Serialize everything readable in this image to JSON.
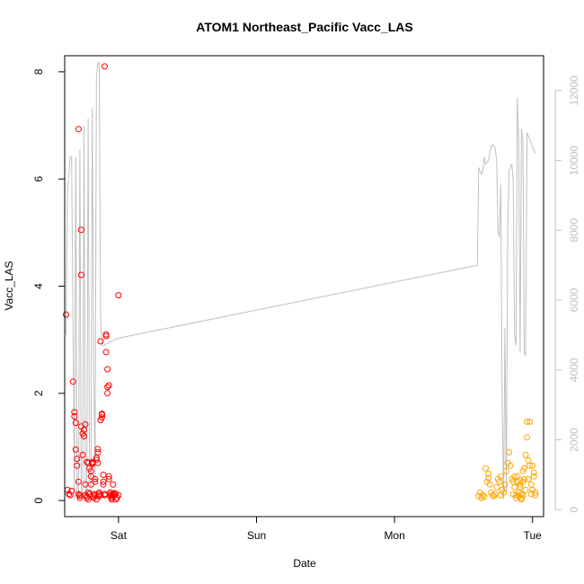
{
  "chart_data": {
    "type": "scatter",
    "title": "ATOM1 Northeast_Pacific Vacc_LAS",
    "xlabel": "Date",
    "ylabel": "Vacc_LAS",
    "x_unit": "days (0 = Sat 00:00)",
    "xlim": [
      -0.39,
      3.08
    ],
    "ylim": [
      -0.3,
      8.3
    ],
    "y2lim": [
      -200,
      13000
    ],
    "x_ticks": [
      {
        "value": 0,
        "label": "Sat"
      },
      {
        "value": 1,
        "label": "Sun"
      },
      {
        "value": 2,
        "label": "Mon"
      },
      {
        "value": 3,
        "label": "Tue"
      }
    ],
    "y_ticks": [
      {
        "value": 0,
        "label": "0"
      },
      {
        "value": 2,
        "label": "2"
      },
      {
        "value": 4,
        "label": "4"
      },
      {
        "value": 6,
        "label": "6"
      },
      {
        "value": 8,
        "label": "8"
      }
    ],
    "y2_ticks": [
      {
        "value": 0,
        "label": "0"
      },
      {
        "value": 2000,
        "label": "2000"
      },
      {
        "value": 4000,
        "label": "4000"
      },
      {
        "value": 6000,
        "label": "6000"
      },
      {
        "value": 8000,
        "label": "8000"
      },
      {
        "value": 10000,
        "label": "10000"
      },
      {
        "value": 12000,
        "label": "12000"
      }
    ],
    "colors": {
      "series1": "#ff0000",
      "series2": "#ffa500",
      "line": "#c0c0c0"
    },
    "series": [
      {
        "color": "#ff0000",
        "x": [
          -0.38,
          -0.37,
          -0.36,
          -0.35,
          -0.34,
          -0.33,
          -0.32,
          -0.32,
          -0.31,
          -0.31,
          -0.3,
          -0.3,
          -0.29,
          -0.29,
          -0.29,
          -0.28,
          -0.28,
          -0.28,
          -0.27,
          -0.27,
          -0.27,
          -0.26,
          -0.26,
          -0.25,
          -0.25,
          -0.24,
          -0.24,
          -0.24,
          -0.23,
          -0.23,
          -0.23,
          -0.22,
          -0.22,
          -0.22,
          -0.21,
          -0.21,
          -0.21,
          -0.2,
          -0.2,
          -0.2,
          -0.19,
          -0.19,
          -0.19,
          -0.18,
          -0.18,
          -0.18,
          -0.17,
          -0.17,
          -0.17,
          -0.16,
          -0.16,
          -0.16,
          -0.15,
          -0.15,
          -0.15,
          -0.14,
          -0.14,
          -0.14,
          -0.13,
          -0.13,
          -0.13,
          -0.12,
          -0.12,
          -0.12,
          -0.11,
          -0.11,
          -0.11,
          -0.1,
          -0.1,
          -0.1,
          -0.09,
          -0.09,
          -0.09,
          -0.08,
          -0.08,
          -0.08,
          -0.07,
          -0.07,
          -0.07,
          -0.06,
          -0.06,
          -0.06,
          -0.05,
          -0.05,
          -0.05,
          -0.04,
          -0.04,
          -0.04,
          -0.03,
          -0.03,
          -0.02,
          -0.02,
          -0.01,
          0.0,
          0.0
        ],
        "y": [
          3.47,
          0.2,
          0.12,
          0.1,
          0.18,
          2.22,
          1.57,
          1.65,
          1.45,
          0.95,
          0.65,
          0.78,
          6.93,
          0.35,
          0.12,
          0.05,
          0.1,
          0.09,
          5.05,
          4.21,
          1.38,
          0.85,
          1.25,
          1.2,
          1.32,
          1.42,
          0.3,
          0.1,
          0.05,
          0.08,
          0.72,
          0.7,
          0.02,
          0.15,
          0.12,
          0.6,
          0.12,
          0.45,
          0.3,
          0.55,
          0.7,
          0.68,
          0.72,
          0.08,
          0.05,
          0.12,
          0.1,
          0.4,
          0.35,
          0.02,
          0.8,
          0.76,
          0.9,
          0.96,
          0.7,
          0.15,
          0.08,
          0.12,
          0.1,
          2.97,
          1.5,
          1.55,
          1.6,
          1.62,
          0.35,
          0.48,
          0.3,
          0.12,
          0.1,
          8.1,
          3.07,
          3.1,
          2.77,
          2.45,
          2.12,
          2.0,
          2.15,
          0.4,
          0.45,
          0.15,
          0.12,
          0.08,
          0.1,
          0.05,
          0.02,
          0.08,
          0.3,
          0.12,
          0.1,
          0.14,
          0.12,
          0.02,
          0.05,
          3.83,
          0.1
        ]
      },
      {
        "color": "#ffa500",
        "x": [
          2.61,
          2.62,
          2.63,
          2.64,
          2.65,
          2.66,
          2.67,
          2.68,
          2.68,
          2.69,
          2.7,
          2.71,
          2.72,
          2.73,
          2.74,
          2.75,
          2.76,
          2.77,
          2.77,
          2.78,
          2.79,
          2.8,
          2.81,
          2.82,
          2.83,
          2.84,
          2.85,
          2.86,
          2.86,
          2.87,
          2.87,
          2.88,
          2.88,
          2.89,
          2.89,
          2.9,
          2.9,
          2.91,
          2.91,
          2.91,
          2.92,
          2.92,
          2.92,
          2.93,
          2.93,
          2.93,
          2.94,
          2.94,
          2.95,
          2.95,
          2.96,
          2.96,
          2.97,
          2.97,
          2.98,
          2.98,
          2.99,
          2.99,
          3.0,
          3.0,
          3.01,
          3.01,
          3.02,
          3.02
        ],
        "y": [
          0.08,
          0.15,
          0.05,
          0.1,
          0.07,
          0.6,
          0.35,
          0.42,
          0.5,
          0.3,
          0.15,
          0.1,
          0.08,
          0.12,
          0.25,
          0.4,
          0.35,
          0.1,
          0.45,
          0.2,
          0.15,
          0.3,
          0.55,
          0.7,
          0.9,
          0.65,
          0.4,
          0.35,
          0.12,
          0.25,
          0.45,
          0.05,
          0.1,
          0.35,
          0.45,
          0.15,
          0.08,
          0.38,
          0.3,
          0.25,
          0.12,
          0.05,
          0.02,
          0.1,
          0.55,
          0.35,
          0.6,
          0.4,
          0.2,
          0.85,
          1.47,
          1.18,
          0.75,
          0.4,
          1.47,
          0.65,
          0.3,
          0.12,
          0.2,
          0.65,
          0.52,
          0.45,
          0.1,
          0.15
        ]
      }
    ],
    "line_series": {
      "color": "#c0c0c0",
      "x": [
        -0.38,
        -0.37,
        -0.35,
        -0.34,
        -0.33,
        -0.32,
        -0.31,
        -0.3,
        -0.29,
        -0.28,
        -0.27,
        -0.26,
        -0.25,
        -0.24,
        -0.23,
        -0.22,
        -0.21,
        -0.2,
        -0.19,
        -0.18,
        -0.17,
        -0.16,
        -0.15,
        -0.14,
        -0.13,
        -0.12,
        -0.11,
        -0.1,
        -0.09,
        -0.08,
        -0.07,
        -0.06,
        -0.05,
        -0.04,
        -0.03,
        -0.02,
        0.0,
        0.01,
        2.6,
        2.61,
        2.62,
        2.63,
        2.64,
        2.65,
        2.66,
        2.67,
        2.68,
        2.69,
        2.7,
        2.71,
        2.72,
        2.73,
        2.74,
        2.75,
        2.76,
        2.77,
        2.78,
        2.79,
        2.8,
        2.81,
        2.82,
        2.83,
        2.84,
        2.85,
        2.86,
        2.87,
        2.88,
        2.89,
        2.9,
        2.91,
        2.92,
        2.93,
        2.94,
        2.95,
        2.96,
        2.97,
        2.98,
        2.99,
        3.0,
        3.01,
        3.02
      ],
      "y": [
        5000,
        9000,
        10100,
        10100,
        5500,
        300,
        10100,
        400,
        300,
        10300,
        600,
        400,
        11000,
        800,
        400,
        11200,
        1500,
        500,
        11500,
        4000,
        800,
        12400,
        12800,
        12800,
        5500,
        4700,
        4700,
        4720,
        4740,
        4760,
        4780,
        4800,
        4820,
        4840,
        4860,
        4880,
        4900,
        4920,
        7000,
        9800,
        9700,
        9600,
        9700,
        10100,
        9900,
        9950,
        10000,
        10200,
        10400,
        10450,
        10400,
        10350,
        10000,
        8000,
        7800,
        9300,
        3000,
        300,
        5200,
        500,
        8000,
        9700,
        9800,
        9900,
        9400,
        5000,
        4700,
        11800,
        10500,
        4500,
        10900,
        10600,
        4500,
        4400,
        10800,
        10700,
        10600,
        10500,
        10400,
        10300,
        10200
      ]
    }
  }
}
